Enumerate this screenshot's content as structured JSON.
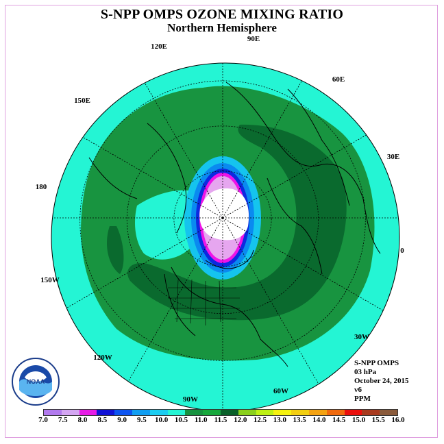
{
  "header": {
    "title": "S-NPP OMPS OZONE MIXING RATIO",
    "subtitle": "Northern Hemisphere"
  },
  "map": {
    "longitude_labels": [
      "90E",
      "60E",
      "30E",
      "0",
      "30W",
      "60W",
      "90W",
      "120W",
      "150W",
      "180",
      "150E",
      "120E"
    ],
    "field_colors": {
      "background_band": "#24f5d4",
      "green_band": "#189440",
      "dark_green_band": "#0a6a2e",
      "polar_low": "#ffffff",
      "edge_blue_1": "#15c4ee",
      "edge_blue_2": "#0a8af0",
      "edge_blue_3": "#0c2ae0",
      "edge_magenta": "#ee14e8",
      "edge_pink": "#e6a6ef"
    }
  },
  "info": {
    "instrument": "S-NPP OMPS",
    "level": "03 hPa",
    "date": "October 24, 2015",
    "version": "v6",
    "units": "PPM"
  },
  "legend": {
    "bins": [
      {
        "color": "#b27aee"
      },
      {
        "color": "#d4a6f2"
      },
      {
        "color": "#e71ce6"
      },
      {
        "color": "#1112d6"
      },
      {
        "color": "#0d55f1"
      },
      {
        "color": "#119ef2"
      },
      {
        "color": "#1bcdf1"
      },
      {
        "color": "#24f5d4"
      },
      {
        "color": "#16923f"
      },
      {
        "color": "#17a83c"
      },
      {
        "color": "#085f28"
      },
      {
        "color": "#8ad01c"
      },
      {
        "color": "#bdf014"
      },
      {
        "color": "#f5f20f"
      },
      {
        "color": "#f2ce11"
      },
      {
        "color": "#f5a312"
      },
      {
        "color": "#f16a0e"
      },
      {
        "color": "#ea0f0c"
      },
      {
        "color": "#a83a1e"
      },
      {
        "color": "#8a5a3a"
      }
    ],
    "labels": [
      "7.0",
      "7.5",
      "8.0",
      "8.5",
      "9.0",
      "9.5",
      "10.0",
      "10.5",
      "11.0",
      "11.5",
      "12.0",
      "12.5",
      "13.0",
      "13.5",
      "14.0",
      "14.5",
      "15.0",
      "15.5",
      "16.0"
    ]
  },
  "logo": {
    "text": "NOAA"
  }
}
